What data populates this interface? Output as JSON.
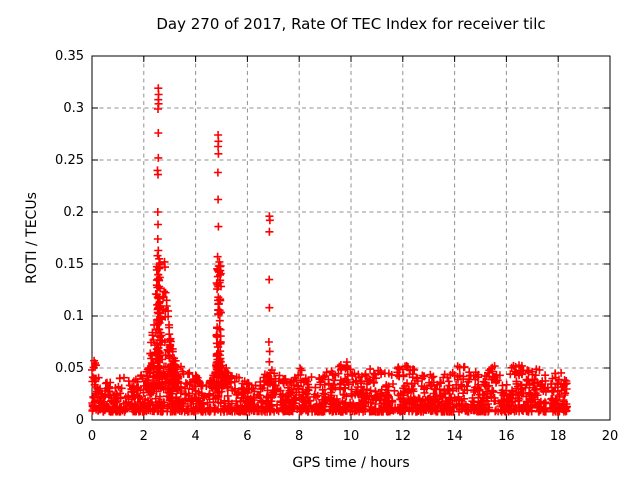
{
  "chart_data": {
    "type": "scatter",
    "title": "Day 270 of 2017, Rate Of TEC Index for receiver tilc",
    "xlabel": "GPS time / hours",
    "ylabel": "ROTI / TECUs",
    "xlim": [
      0,
      20
    ],
    "ylim": [
      0,
      0.35
    ],
    "xticks": {
      "values": [
        0,
        2,
        4,
        6,
        8,
        10,
        12,
        14,
        16,
        18,
        20
      ],
      "labels": [
        "0",
        "2",
        "4",
        "6",
        "8",
        "10",
        "12",
        "14",
        "16",
        "18",
        "20"
      ]
    },
    "yticks": {
      "values": [
        0,
        0.05,
        0.1,
        0.15,
        0.2,
        0.25,
        0.3,
        0.35
      ],
      "labels": [
        "0",
        "0.05",
        "0.1",
        "0.15",
        "0.2",
        "0.25",
        "0.3",
        "0.35"
      ]
    },
    "grid": {
      "show": true,
      "color": "#909090"
    },
    "frame_color": "#000000",
    "legend": "none",
    "marker": {
      "shape": "plus",
      "color": "#ff0000"
    },
    "seed": 20170270,
    "series": [
      {
        "name": "ROTI",
        "color": "#ff0000",
        "baseline": {
          "x_start": 0.0,
          "x_end": 18.35,
          "n": 1900,
          "y_floor": 0.008,
          "power": 1.9,
          "envelope": [
            [
              0,
              0.05
            ],
            [
              0.15,
              0.046
            ],
            [
              0.35,
              0.034
            ],
            [
              0.7,
              0.03
            ],
            [
              1.0,
              0.034
            ],
            [
              1.3,
              0.038
            ],
            [
              1.6,
              0.03
            ],
            [
              1.9,
              0.036
            ],
            [
              2.1,
              0.042
            ],
            [
              2.6,
              0.045
            ],
            [
              3.1,
              0.044
            ],
            [
              3.5,
              0.046
            ],
            [
              3.8,
              0.038
            ],
            [
              4.1,
              0.034
            ],
            [
              4.35,
              0.026
            ],
            [
              4.6,
              0.042
            ],
            [
              4.9,
              0.048
            ],
            [
              5.2,
              0.044
            ],
            [
              5.5,
              0.038
            ],
            [
              5.9,
              0.03
            ],
            [
              6.2,
              0.026
            ],
            [
              6.5,
              0.034
            ],
            [
              6.8,
              0.044
            ],
            [
              7.1,
              0.04
            ],
            [
              7.4,
              0.031
            ],
            [
              7.7,
              0.036
            ],
            [
              8.0,
              0.042
            ],
            [
              8.3,
              0.039
            ],
            [
              8.6,
              0.031
            ],
            [
              8.9,
              0.035
            ],
            [
              9.2,
              0.041
            ],
            [
              9.5,
              0.044
            ],
            [
              9.85,
              0.048
            ],
            [
              10.1,
              0.041
            ],
            [
              10.4,
              0.035
            ],
            [
              10.7,
              0.041
            ],
            [
              11.0,
              0.044
            ],
            [
              11.3,
              0.037
            ],
            [
              11.6,
              0.039
            ],
            [
              11.9,
              0.044
            ],
            [
              12.2,
              0.048
            ],
            [
              12.5,
              0.039
            ],
            [
              12.8,
              0.035
            ],
            [
              13.1,
              0.037
            ],
            [
              13.4,
              0.033
            ],
            [
              13.7,
              0.037
            ],
            [
              14.0,
              0.043
            ],
            [
              14.3,
              0.048
            ],
            [
              14.6,
              0.041
            ],
            [
              14.9,
              0.037
            ],
            [
              15.2,
              0.039
            ],
            [
              15.5,
              0.045
            ],
            [
              15.8,
              0.039
            ],
            [
              16.1,
              0.043
            ],
            [
              16.4,
              0.047
            ],
            [
              16.7,
              0.041
            ],
            [
              17.0,
              0.039
            ],
            [
              17.3,
              0.044
            ],
            [
              17.55,
              0.034
            ],
            [
              17.65,
              0.022
            ],
            [
              17.8,
              0.036
            ],
            [
              18.1,
              0.039
            ],
            [
              18.35,
              0.028
            ]
          ],
          "gaps": [
            [
              4.32,
              4.45,
              0.45
            ],
            [
              6.32,
              6.5,
              0.5
            ],
            [
              17.56,
              17.72,
              0.25
            ]
          ]
        },
        "clusters": [
          {
            "name": "storm-0230-cone",
            "n": 150,
            "x_min": 2.15,
            "x_max": 3.35,
            "y_floor": 0.03,
            "power": 1.25,
            "envelope": [
              [
                2.15,
                0.02
              ],
              [
                2.3,
                0.055
              ],
              [
                2.45,
                0.095
              ],
              [
                2.55,
                0.12
              ],
              [
                2.65,
                0.075
              ],
              [
                2.78,
                0.115
              ],
              [
                2.9,
                0.085
              ],
              [
                3.05,
                0.05
              ],
              [
                3.2,
                0.03
              ],
              [
                3.35,
                0.015
              ]
            ]
          },
          {
            "name": "storm-0230-column",
            "n": 60,
            "x_min": 2.5,
            "x_max": 2.63,
            "y_floor": 0.05,
            "power": 1.0,
            "envelope": [
              [
                2.5,
                0.1
              ],
              [
                2.63,
                0.1
              ]
            ]
          },
          {
            "name": "storm-0455-column",
            "n": 80,
            "x_min": 4.8,
            "x_max": 4.98,
            "y_floor": 0.045,
            "power": 1.4,
            "envelope": [
              [
                4.8,
                0.105
              ],
              [
                4.98,
                0.105
              ]
            ]
          },
          {
            "name": "storm-0455-skirt",
            "n": 40,
            "x_min": 4.55,
            "x_max": 5.3,
            "y_floor": 0.03,
            "power": 1.5,
            "envelope": [
              [
                4.55,
                0.01
              ],
              [
                4.8,
                0.03
              ],
              [
                5.0,
                0.028
              ],
              [
                5.3,
                0.012
              ]
            ]
          }
        ],
        "outliers": [
          [
            2.56,
            0.319
          ],
          [
            2.57,
            0.313
          ],
          [
            2.56,
            0.308
          ],
          [
            2.57,
            0.304
          ],
          [
            2.55,
            0.299
          ],
          [
            2.56,
            0.276
          ],
          [
            2.56,
            0.252
          ],
          [
            2.53,
            0.24
          ],
          [
            2.55,
            0.236
          ],
          [
            2.54,
            0.2
          ],
          [
            2.55,
            0.188
          ],
          [
            2.54,
            0.174
          ],
          [
            2.56,
            0.163
          ],
          [
            2.53,
            0.158
          ],
          [
            2.59,
            0.155
          ],
          [
            2.62,
            0.151
          ],
          [
            2.8,
            0.152
          ],
          [
            2.82,
            0.147
          ],
          [
            4.87,
            0.274
          ],
          [
            4.88,
            0.268
          ],
          [
            4.87,
            0.263
          ],
          [
            4.88,
            0.256
          ],
          [
            4.86,
            0.238
          ],
          [
            4.87,
            0.212
          ],
          [
            4.88,
            0.186
          ],
          [
            4.85,
            0.157
          ],
          [
            4.92,
            0.152
          ],
          [
            4.89,
            0.148
          ],
          [
            6.85,
            0.196
          ],
          [
            6.87,
            0.192
          ],
          [
            6.85,
            0.181
          ],
          [
            6.84,
            0.135
          ],
          [
            6.85,
            0.108
          ],
          [
            6.83,
            0.075
          ],
          [
            6.86,
            0.066
          ],
          [
            6.85,
            0.056
          ],
          [
            0.08,
            0.057
          ],
          [
            0.12,
            0.053
          ],
          [
            9.85,
            0.052
          ],
          [
            12.2,
            0.051
          ],
          [
            16.6,
            0.052
          ]
        ]
      }
    ]
  }
}
